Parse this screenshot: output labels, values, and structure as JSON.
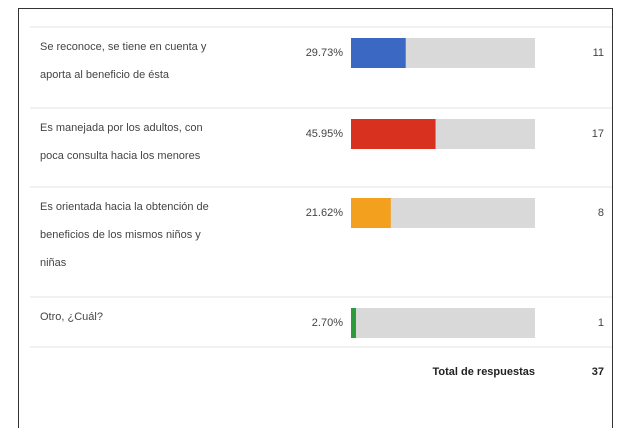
{
  "table": {
    "rows": [
      {
        "label": [
          "Se reconoce, se tiene en cuenta y",
          "aporta al beneficio de ésta"
        ],
        "percent": 29.73,
        "percent_label": "29.73%",
        "count": 11,
        "color": "#3a68c2"
      },
      {
        "label": [
          "Es manejada por los adultos, con",
          "poca consulta hacia los menores"
        ],
        "percent": 45.95,
        "percent_label": "45.95%",
        "count": 17,
        "color": "#d9311f"
      },
      {
        "label": [
          "Es orientada hacia la obtención de",
          "beneficios de los mismos niños y",
          "niñas"
        ],
        "percent": 21.62,
        "percent_label": "21.62%",
        "count": 8,
        "color": "#f4a01f"
      },
      {
        "label": [
          "Otro, ¿Cuál?"
        ],
        "percent": 2.7,
        "percent_label": "2.70%",
        "count": 1,
        "color": "#2e9a3c"
      }
    ],
    "total_label": "Total de respuestas",
    "total": 37
  }
}
